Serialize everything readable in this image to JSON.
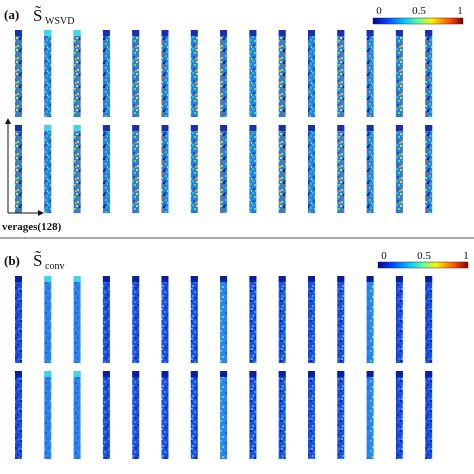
{
  "panels": [
    {
      "label": "(a)",
      "symbol": "S̃",
      "subscript": "WSVD",
      "colorbar_ticks": [
        "0",
        "0.5",
        "1"
      ],
      "axis_label": "verages(128)",
      "style": "jet-noisy"
    },
    {
      "label": "(b)",
      "symbol": "S̃",
      "subscript": "conv",
      "colorbar_ticks": [
        "0",
        "0.5",
        "1"
      ],
      "style": "blue-low"
    }
  ],
  "colors": {
    "colormap": [
      "#00008f",
      "#0040ff",
      "#00c8ff",
      "#60ff9f",
      "#ffef00",
      "#ff5000",
      "#800000"
    ],
    "separator": "#555555"
  }
}
